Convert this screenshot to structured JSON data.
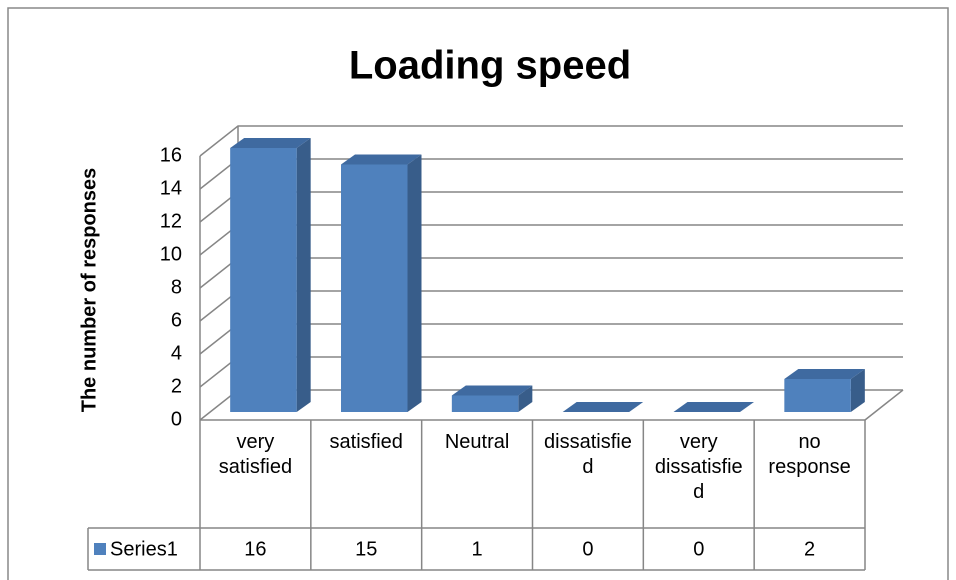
{
  "chart_data": {
    "type": "bar",
    "title": "Loading speed",
    "y_label": "The number of responses",
    "categories": [
      "very satisfied",
      "satisfied",
      "Neutral",
      "dissatisfied",
      "very dissatisfied",
      "no response"
    ],
    "series": [
      {
        "name": "Series1",
        "color": "#4f81bd",
        "values": [
          16,
          15,
          1,
          0,
          0,
          2
        ]
      }
    ],
    "ylim": [
      0,
      16
    ],
    "yticks": [
      0,
      2,
      4,
      6,
      8,
      10,
      12,
      14,
      16
    ],
    "grid": true,
    "data_table": true
  }
}
